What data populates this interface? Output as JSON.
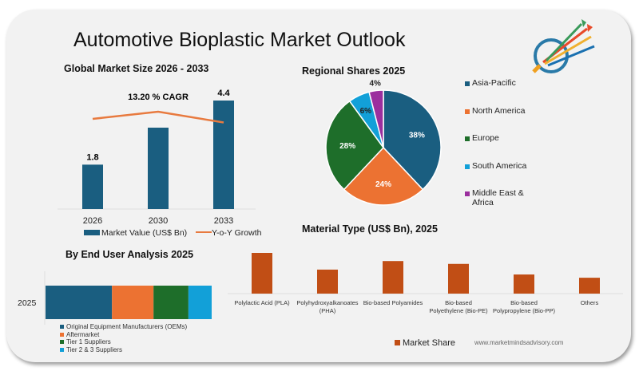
{
  "title": "Automotive Bioplastic Market Outlook",
  "website": "www.marketmindsadvisory.com",
  "colors": {
    "blue": "#1a5e80",
    "orange": "#ec7232",
    "green": "#1e6e2a",
    "cyan": "#12a0d8",
    "purple": "#9b2f9e",
    "rust": "#c14e15",
    "line": "#e87a3f"
  },
  "chart_data": [
    {
      "type": "bar",
      "title": "Global Market Size 2026 - 2033",
      "categories": [
        "2026",
        "2030",
        "2033"
      ],
      "series": [
        {
          "name": "Market Value (US$ Bn)",
          "values": [
            1.8,
            3.3,
            4.4
          ]
        },
        {
          "name": "Y-o-Y Growth",
          "type": "line",
          "values_relative": [
            0.9,
            1.0,
            0.85
          ]
        }
      ],
      "data_labels": [
        "1.8",
        "",
        "4.4"
      ],
      "annotation": "13.20  % CAGR",
      "legend": "bottom"
    },
    {
      "type": "pie",
      "title": "Regional Shares 2025",
      "categories": [
        "Asia-Pacific",
        "North America",
        "Europe",
        "South America",
        "Middle East & Africa"
      ],
      "values": [
        38,
        24,
        28,
        6,
        4
      ],
      "labels": [
        "38%",
        "24%",
        "28%",
        "6%",
        "4%"
      ],
      "legend": "right"
    },
    {
      "type": "bar",
      "title": "Material  Type (US$ Bn), 2025",
      "categories": [
        "Polylactic Acid (PLA)",
        "Polyhydroxyalkanoates (PHA)",
        "Bio-based Polyamides",
        "Bio-based Polyethylene (Bio-PE)",
        "Bio-based Polypropylene (Bio-PP)",
        "Others"
      ],
      "series": [
        {
          "name": "Market Share",
          "values_relative": [
            1.0,
            0.59,
            0.8,
            0.73,
            0.47,
            0.39
          ]
        }
      ],
      "legend": "bottom"
    },
    {
      "type": "bar",
      "orientation": "horizontal-stacked",
      "title": "By  End User Analysis 2025",
      "categories": [
        "2025"
      ],
      "series": [
        {
          "name": "Original Equipment Manufacturers (OEMs)",
          "values": [
            40
          ]
        },
        {
          "name": "Aftermarket",
          "values": [
            25
          ]
        },
        {
          "name": "Tier 1 Suppliers",
          "values": [
            21
          ]
        },
        {
          "name": "Tier 2 & 3 Suppliers",
          "values": [
            14
          ]
        }
      ],
      "legend": "bottom"
    }
  ]
}
